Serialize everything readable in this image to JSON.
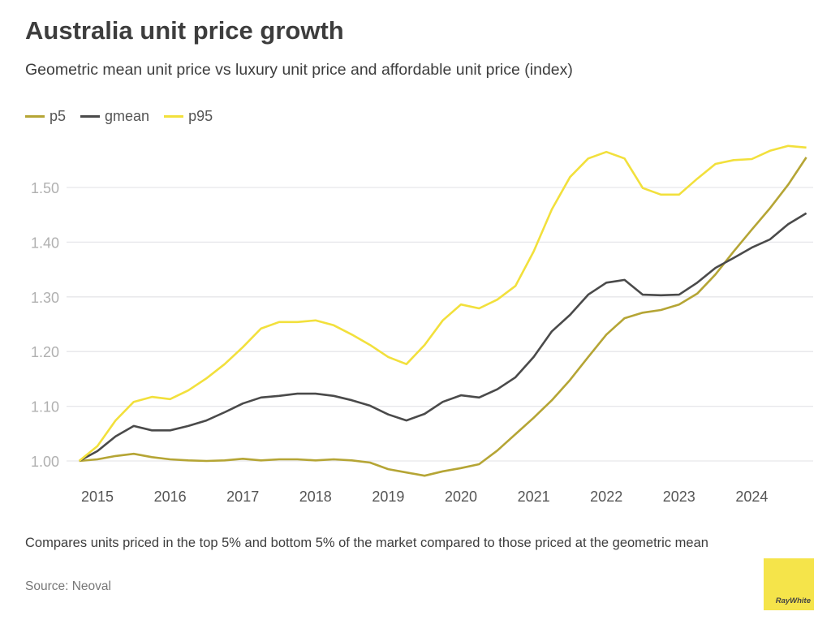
{
  "chart_data": {
    "type": "line",
    "title": "Australia unit price growth",
    "subtitle": "Geometric mean unit price vs luxury unit price and affordable unit price (index)",
    "xlabel": "",
    "ylabel": "",
    "ylim": [
      0.96,
      1.6
    ],
    "xlim": [
      2014.7,
      2024.8
    ],
    "grid": true,
    "legend_position": "top-left",
    "y_ticks": [
      "1.00",
      "1.10",
      "1.20",
      "1.30",
      "1.40",
      "1.50"
    ],
    "y_tick_values": [
      1.0,
      1.1,
      1.2,
      1.3,
      1.4,
      1.5
    ],
    "x_ticks": [
      "2015",
      "2016",
      "2017",
      "2018",
      "2019",
      "2020",
      "2021",
      "2022",
      "2023",
      "2024"
    ],
    "x_tick_values": [
      2015,
      2016,
      2017,
      2018,
      2019,
      2020,
      2021,
      2022,
      2023,
      2024
    ],
    "x": [
      2014.75,
      2015.0,
      2015.25,
      2015.5,
      2015.75,
      2016.0,
      2016.25,
      2016.5,
      2016.75,
      2017.0,
      2017.25,
      2017.5,
      2017.75,
      2018.0,
      2018.25,
      2018.5,
      2018.75,
      2019.0,
      2019.25,
      2019.5,
      2019.75,
      2020.0,
      2020.25,
      2020.5,
      2020.75,
      2021.0,
      2021.25,
      2021.5,
      2021.75,
      2022.0,
      2022.25,
      2022.5,
      2022.75,
      2023.0,
      2023.25,
      2023.5,
      2023.75,
      2024.0,
      2024.25,
      2024.5,
      2024.75
    ],
    "series": [
      {
        "name": "p5",
        "color": "#b5a535",
        "values": [
          1.0,
          1.003,
          1.009,
          1.013,
          1.007,
          1.003,
          1.001,
          1.0,
          1.001,
          1.004,
          1.001,
          1.003,
          1.003,
          1.001,
          1.003,
          1.001,
          0.997,
          0.985,
          0.979,
          0.973,
          0.981,
          0.987,
          0.994,
          1.019,
          1.049,
          1.079,
          1.111,
          1.148,
          1.19,
          1.231,
          1.261,
          1.271,
          1.276,
          1.286,
          1.306,
          1.341,
          1.383,
          1.423,
          1.462,
          1.505,
          1.555
        ]
      },
      {
        "name": "gmean",
        "color": "#4a4a4a",
        "values": [
          1.0,
          1.018,
          1.045,
          1.064,
          1.056,
          1.056,
          1.064,
          1.074,
          1.089,
          1.105,
          1.116,
          1.119,
          1.123,
          1.123,
          1.119,
          1.111,
          1.101,
          1.085,
          1.074,
          1.086,
          1.108,
          1.12,
          1.116,
          1.131,
          1.153,
          1.19,
          1.237,
          1.267,
          1.304,
          1.326,
          1.331,
          1.304,
          1.303,
          1.304,
          1.326,
          1.353,
          1.371,
          1.39,
          1.405,
          1.433,
          1.453
        ]
      },
      {
        "name": "p95",
        "color": "#f2e03c",
        "values": [
          1.0,
          1.027,
          1.074,
          1.108,
          1.117,
          1.113,
          1.129,
          1.151,
          1.177,
          1.208,
          1.242,
          1.254,
          1.254,
          1.257,
          1.248,
          1.231,
          1.212,
          1.19,
          1.177,
          1.212,
          1.257,
          1.286,
          1.279,
          1.295,
          1.32,
          1.383,
          1.46,
          1.519,
          1.553,
          1.565,
          1.553,
          1.499,
          1.487,
          1.487,
          1.516,
          1.543,
          1.55,
          1.552,
          1.567,
          1.576,
          1.573
        ]
      }
    ],
    "annotations": {
      "note": "Compares units priced in the top 5% and bottom 5% of the market compared to those priced at the geometric mean",
      "source": "Source: Neoval"
    }
  },
  "branding": {
    "logo_text": "RayWhite"
  }
}
